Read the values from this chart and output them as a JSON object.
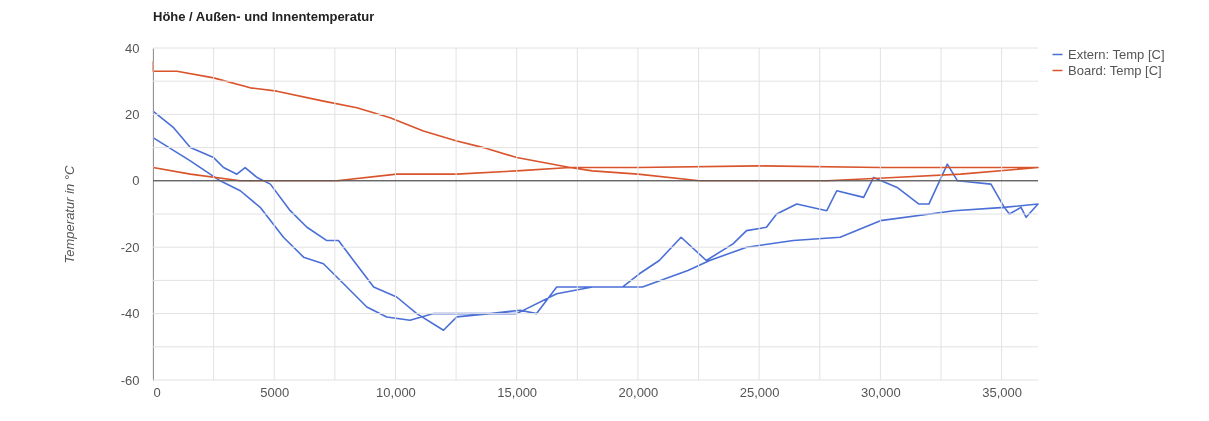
{
  "chart_data": {
    "type": "line",
    "title": "Höhe / Außen- und Innentemperatur",
    "ylabel": "Temperatur in °C",
    "xlim": [
      0,
      36500
    ],
    "ylim": [
      -60,
      40
    ],
    "xticks": [
      0,
      {
        "value": 2500,
        "label": null
      },
      5000,
      {
        "value": 7500,
        "label": null
      },
      {
        "value": 10000,
        "label": "10,000"
      },
      {
        "value": 12500,
        "label": null
      },
      {
        "value": 15000,
        "label": "15,000"
      },
      {
        "value": 17500,
        "label": null
      },
      {
        "value": 20000,
        "label": "20,000"
      },
      {
        "value": 22500,
        "label": null
      },
      {
        "value": 25000,
        "label": "25,000"
      },
      {
        "value": 27500,
        "label": null
      },
      {
        "value": 30000,
        "label": "30,000"
      },
      {
        "value": 32500,
        "label": null
      },
      {
        "value": 35000,
        "label": "35,000"
      }
    ],
    "yticks": [
      -60,
      {
        "value": -50,
        "label": null
      },
      -40,
      {
        "value": -30,
        "label": null
      },
      -20,
      {
        "value": -10,
        "label": null
      },
      0,
      {
        "value": 10,
        "label": null
      },
      20,
      {
        "value": 30,
        "label": null
      },
      40
    ],
    "grid": true,
    "legend": "top right",
    "line_style": "solid",
    "marker": "none",
    "ref_lines": [
      {
        "axis": "y",
        "value": 0,
        "color": "#333333"
      }
    ],
    "series": [
      {
        "name": "Extern: Temp [C]",
        "color": "#4a6fd6",
        "x": [
          0,
          850,
          1540,
          2500,
          2910,
          3460,
          3800,
          4290,
          4840,
          5660,
          6350,
          7170,
          7650,
          8270,
          9100,
          10050,
          10880,
          11980,
          12530,
          13900,
          15140,
          15820,
          16650,
          18120,
          19360,
          20060,
          20880,
          21780,
          22820,
          23920,
          24480,
          25300,
          25720,
          26550,
          27790,
          28200,
          29310,
          29720,
          30690,
          31590,
          32000,
          32760,
          33180,
          34560,
          35110,
          35320,
          35800,
          36010,
          36500,
          35110,
          33040,
          30000,
          28340,
          26410,
          24480,
          22960,
          22060,
          20190,
          18120,
          16650,
          15000,
          11570,
          10600,
          9640,
          8820,
          7860,
          7030,
          6210,
          5380,
          4420,
          3600,
          2770,
          1540,
          0
        ],
        "values": [
          21,
          16,
          10,
          7,
          4,
          2,
          4,
          1,
          -1,
          -9,
          -14,
          -18,
          -18,
          -24,
          -32,
          -35,
          -40,
          -45,
          -41,
          -40,
          -39,
          -40,
          -32,
          -32,
          -32,
          -28,
          -24,
          -17,
          -24,
          -19,
          -15,
          -14,
          -10,
          -7,
          -9,
          -3,
          -5,
          1,
          -2,
          -7,
          -7,
          5,
          0,
          -1,
          -8,
          -10,
          -8,
          -11,
          -7,
          -8,
          -9,
          -12,
          -17,
          -18,
          -20,
          -24,
          -27,
          -32,
          -32,
          -34,
          -40,
          -40,
          -42,
          -41,
          -38,
          -31,
          -25,
          -23,
          -17,
          -8,
          -3,
          0,
          6,
          13
        ]
      },
      {
        "name": "Board: Temp [C]",
        "color": "#d9532b",
        "x": [
          0,
          0,
          990,
          2500,
          4010,
          5110,
          7030,
          8410,
          9780,
          11150,
          12530,
          13630,
          15000,
          17200,
          18120,
          20000,
          22540,
          25000,
          27790,
          30550,
          33310,
          36500,
          30000,
          25000,
          20000,
          17200,
          15000,
          12530,
          10050,
          7580,
          5110,
          3600,
          1540,
          0
        ],
        "values": [
          36,
          33,
          33,
          31,
          28,
          27,
          24,
          22,
          19,
          15,
          12,
          10,
          7,
          4,
          3,
          2,
          0,
          0,
          0,
          1,
          2,
          4,
          4,
          4.5,
          4,
          4,
          3,
          2,
          2,
          0,
          0,
          0,
          2,
          4
        ]
      }
    ]
  }
}
